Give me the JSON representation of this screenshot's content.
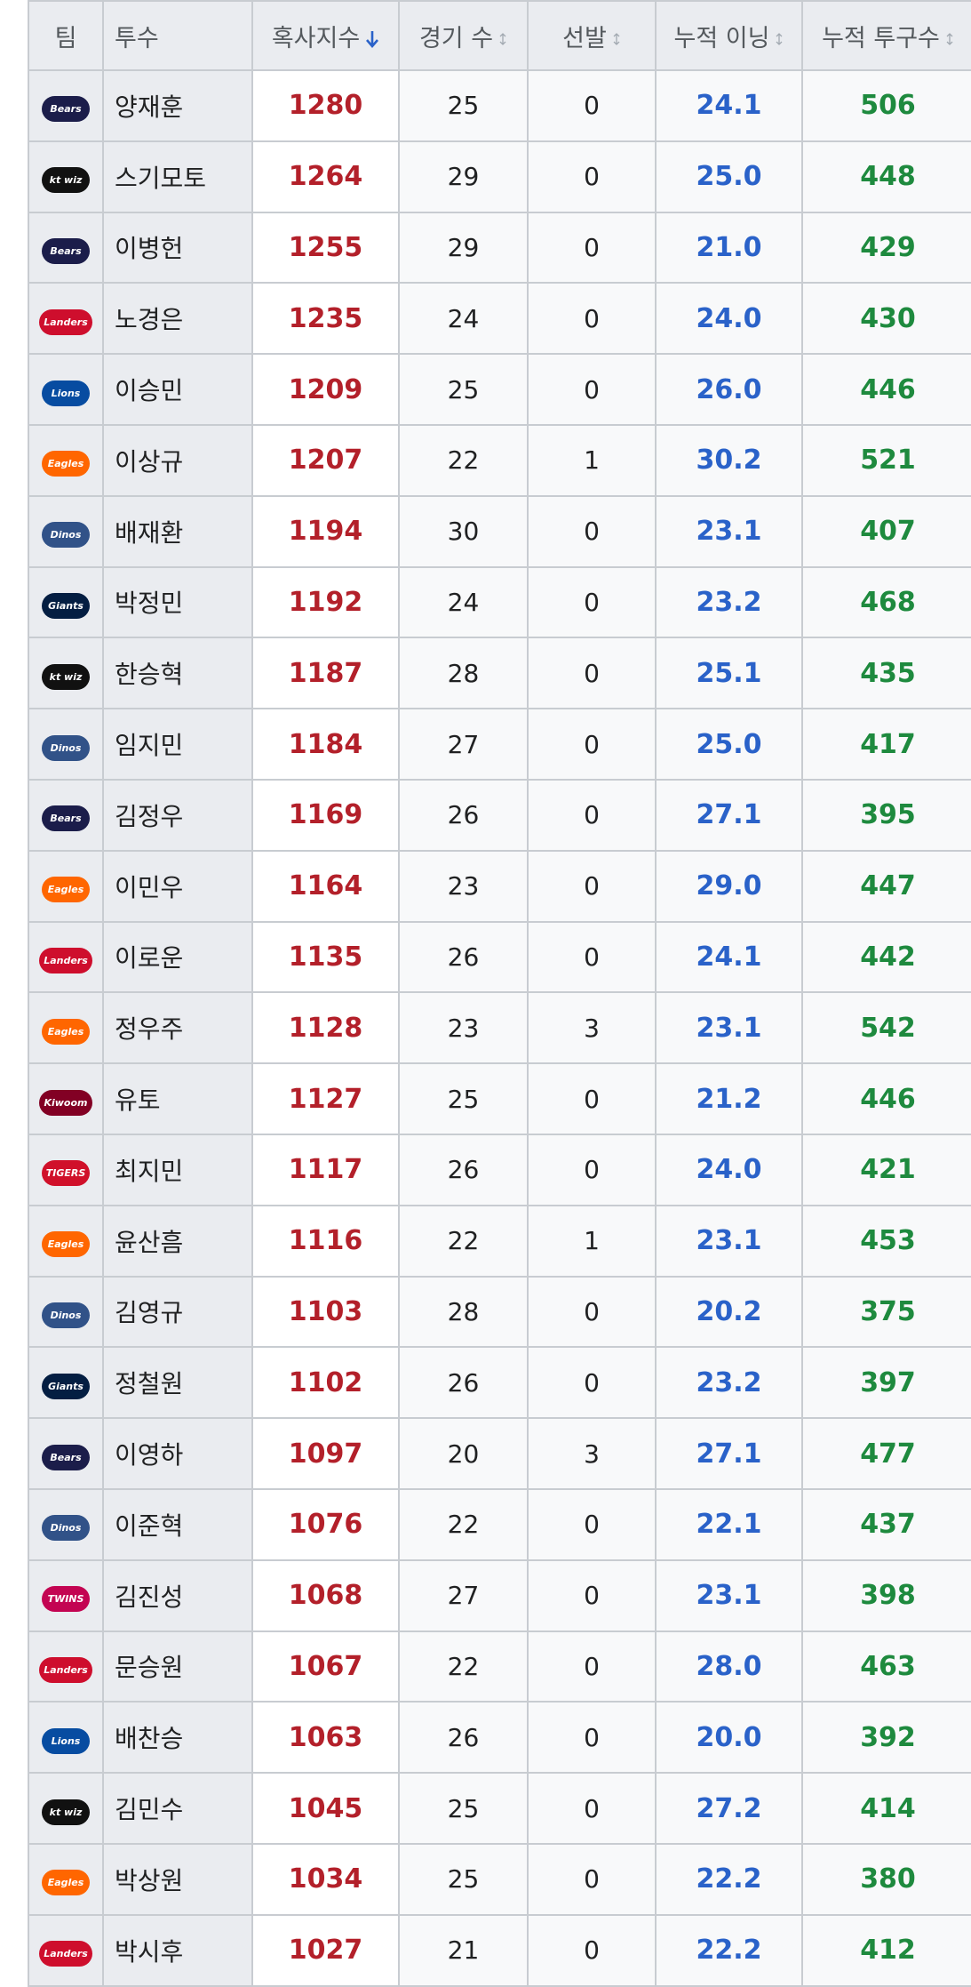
{
  "table": {
    "columns": [
      "팀",
      "투수",
      "혹사지수",
      "경기 수",
      "선발",
      "누적 이닝",
      "누적 투구수"
    ],
    "rows": [
      [
        {
          "text": "Bears",
          "color": "#1b1d4a"
        },
        "양재훈",
        1280,
        25,
        0,
        "24.1",
        506
      ],
      [
        {
          "text": "kt wiz",
          "color": "#111111"
        },
        "스기모토",
        1264,
        29,
        0,
        "25.0",
        448
      ],
      [
        {
          "text": "Bears",
          "color": "#1b1d4a"
        },
        "이병헌",
        1255,
        29,
        0,
        "21.0",
        429
      ],
      [
        {
          "text": "Landers",
          "color": "#ce0e2d"
        },
        "노경은",
        1235,
        24,
        0,
        "24.0",
        430
      ],
      [
        {
          "text": "Lions",
          "color": "#074ca1"
        },
        "이승민",
        1209,
        25,
        0,
        "26.0",
        446
      ],
      [
        {
          "text": "Eagles",
          "color": "#ff6600"
        },
        "이상규",
        1207,
        22,
        1,
        "30.2",
        521
      ],
      [
        {
          "text": "Dinos",
          "color": "#315288"
        },
        "배재환",
        1194,
        30,
        0,
        "23.1",
        407
      ],
      [
        {
          "text": "Giants",
          "color": "#041e42"
        },
        "박정민",
        1192,
        24,
        0,
        "23.2",
        468
      ],
      [
        {
          "text": "kt wiz",
          "color": "#111111"
        },
        "한승혁",
        1187,
        28,
        0,
        "25.1",
        435
      ],
      [
        {
          "text": "Dinos",
          "color": "#315288"
        },
        "임지민",
        1184,
        27,
        0,
        "25.0",
        417
      ],
      [
        {
          "text": "Bears",
          "color": "#1b1d4a"
        },
        "김정우",
        1169,
        26,
        0,
        "27.1",
        395
      ],
      [
        {
          "text": "Eagles",
          "color": "#ff6600"
        },
        "이민우",
        1164,
        23,
        0,
        "29.0",
        447
      ],
      [
        {
          "text": "Landers",
          "color": "#ce0e2d"
        },
        "이로운",
        1135,
        26,
        0,
        "24.1",
        442
      ],
      [
        {
          "text": "Eagles",
          "color": "#ff6600"
        },
        "정우주",
        1128,
        23,
        3,
        "23.1",
        542
      ],
      [
        {
          "text": "Kiwoom",
          "color": "#820024"
        },
        "유토",
        1127,
        25,
        0,
        "21.2",
        446
      ],
      [
        {
          "text": "TIGERS",
          "color": "#d0102a"
        },
        "최지민",
        1117,
        26,
        0,
        "24.0",
        421
      ],
      [
        {
          "text": "Eagles",
          "color": "#ff6600"
        },
        "윤산흠",
        1116,
        22,
        1,
        "23.1",
        453
      ],
      [
        {
          "text": "Dinos",
          "color": "#315288"
        },
        "김영규",
        1103,
        28,
        0,
        "20.2",
        375
      ],
      [
        {
          "text": "Giants",
          "color": "#041e42"
        },
        "정철원",
        1102,
        26,
        0,
        "23.2",
        397
      ],
      [
        {
          "text": "Bears",
          "color": "#1b1d4a"
        },
        "이영하",
        1097,
        20,
        3,
        "27.1",
        477
      ],
      [
        {
          "text": "Dinos",
          "color": "#315288"
        },
        "이준혁",
        1076,
        22,
        0,
        "22.1",
        437
      ],
      [
        {
          "text": "TWINS",
          "color": "#c30452"
        },
        "김진성",
        1068,
        27,
        0,
        "23.1",
        398
      ],
      [
        {
          "text": "Landers",
          "color": "#ce0e2d"
        },
        "문승원",
        1067,
        22,
        0,
        "28.0",
        463
      ],
      [
        {
          "text": "Lions",
          "color": "#074ca1"
        },
        "배찬승",
        1063,
        26,
        0,
        "20.0",
        392
      ],
      [
        {
          "text": "kt wiz",
          "color": "#111111"
        },
        "김민수",
        1045,
        25,
        0,
        "27.2",
        414
      ],
      [
        {
          "text": "Eagles",
          "color": "#ff6600"
        },
        "박상원",
        1034,
        25,
        0,
        "22.2",
        380
      ],
      [
        {
          "text": "Landers",
          "color": "#ce0e2d"
        },
        "박시후",
        1027,
        21,
        0,
        "22.2",
        412
      ]
    ]
  }
}
